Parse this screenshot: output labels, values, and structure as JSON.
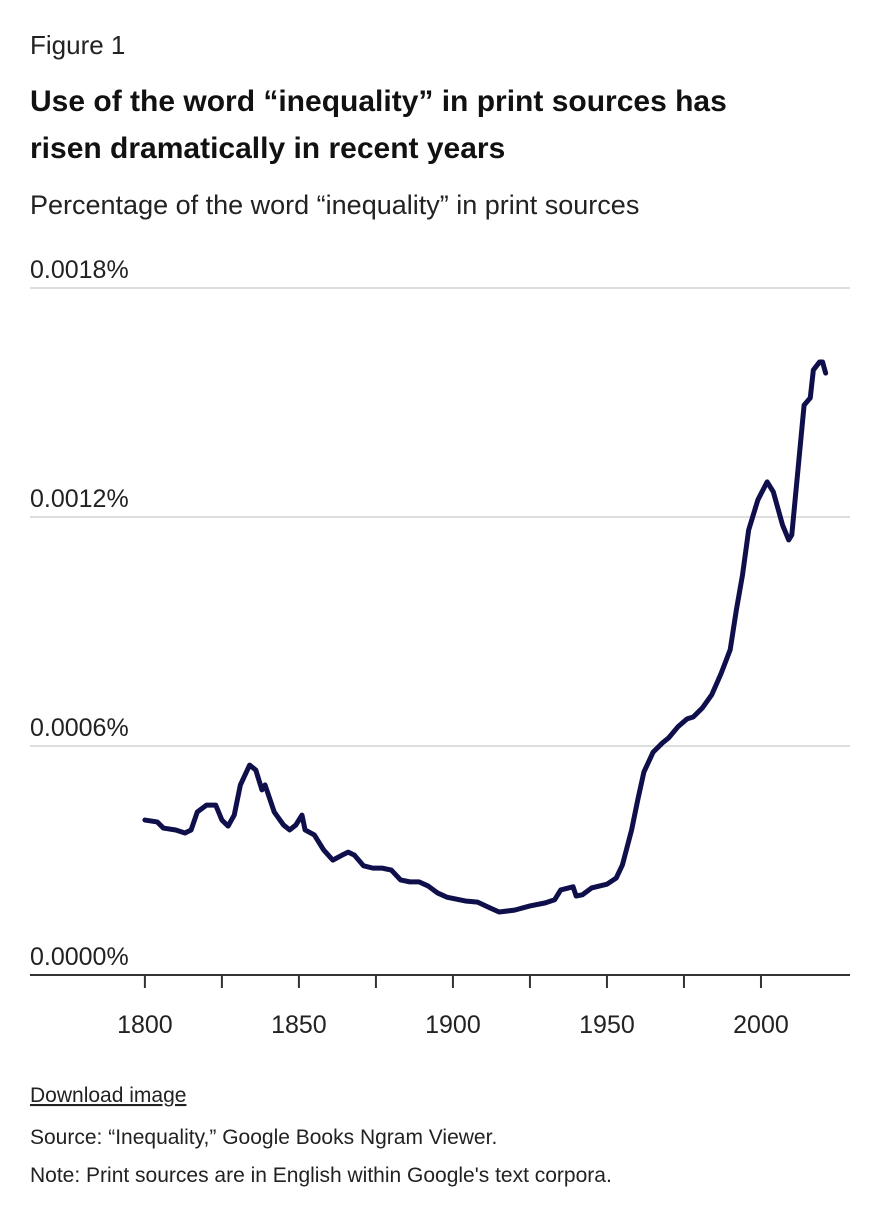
{
  "chart_data": {
    "type": "line",
    "figure_label": "Figure 1",
    "title": [
      "Use of the word “inequality” in print sources has",
      "risen dramatically in recent years"
    ],
    "subtitle": "Percentage of the word “inequality” in print sources",
    "download_link": "Download image",
    "source": "Source: “Inequality,” Google Books Ngram Viewer.",
    "note": "Note: Print sources are in English within Google's text corpora.",
    "x": [
      1800,
      1804,
      1806,
      1810,
      1813,
      1815,
      1817,
      1820,
      1823,
      1825,
      1827,
      1829,
      1831,
      1834,
      1836,
      1838,
      1839,
      1842,
      1845,
      1847,
      1849,
      1851,
      1852,
      1855,
      1858,
      1861,
      1864,
      1866,
      1868,
      1871,
      1874,
      1877,
      1880,
      1883,
      1886,
      1889,
      1892,
      1895,
      1898,
      1901,
      1904,
      1908,
      1912,
      1915,
      1920,
      1925,
      1930,
      1933,
      1935,
      1939,
      1940,
      1942,
      1945,
      1950,
      1953,
      1955,
      1958,
      1960,
      1962,
      1965,
      1968,
      1970,
      1973,
      1976,
      1978,
      1981,
      1984,
      1987,
      1990,
      1992,
      1994,
      1996,
      1999,
      2002,
      2004,
      2007,
      2009,
      2010,
      2012,
      2014,
      2016,
      2017,
      2019,
      2020,
      2021
    ],
    "series": [
      {
        "name": "inequality",
        "color": "#0f0f4b",
        "values": [
          0.000406,
          0.000401,
          0.000385,
          0.00038,
          0.000372,
          0.00038,
          0.000427,
          0.000445,
          0.000445,
          0.000406,
          0.00039,
          0.000419,
          0.000498,
          0.00055,
          0.000537,
          0.000485,
          0.000498,
          0.000427,
          0.000393,
          0.00038,
          0.000393,
          0.000419,
          0.00038,
          0.000367,
          0.000328,
          0.000301,
          0.000314,
          0.000322,
          0.000314,
          0.000286,
          0.00028,
          0.00028,
          0.000275,
          0.000249,
          0.000244,
          0.000244,
          0.000233,
          0.000215,
          0.000204,
          0.000199,
          0.000194,
          0.000191,
          0.000176,
          0.000165,
          0.00017,
          0.000181,
          0.000189,
          0.000197,
          0.000223,
          0.000231,
          0.000207,
          0.00021,
          0.000228,
          0.000238,
          0.000254,
          0.000288,
          0.00038,
          0.000459,
          0.000532,
          0.000584,
          0.000608,
          0.000621,
          0.00065,
          0.000671,
          0.000676,
          0.0007,
          0.000734,
          0.000789,
          0.000852,
          0.000956,
          0.001048,
          0.001166,
          0.001245,
          0.001292,
          0.001266,
          0.001179,
          0.00114,
          0.001153,
          0.001323,
          0.001493,
          0.001512,
          0.001585,
          0.001606,
          0.001606,
          0.001577
        ]
      }
    ],
    "xlim": [
      1762.7,
      2028.9
    ],
    "xticks": [
      1800,
      1850,
      1900,
      1950,
      2000
    ],
    "xminor_ticks": [
      1825,
      1875,
      1925,
      1975
    ],
    "ylim": [
      0,
      0.0018
    ],
    "yticks": [
      {
        "value": 0,
        "label": "0.0000%"
      },
      {
        "value": 0.0006,
        "label": "0.0006%"
      },
      {
        "value": 0.0012,
        "label": "0.0012%"
      },
      {
        "value": 0.0018,
        "label": "0.0018%"
      }
    ],
    "grid": true
  }
}
